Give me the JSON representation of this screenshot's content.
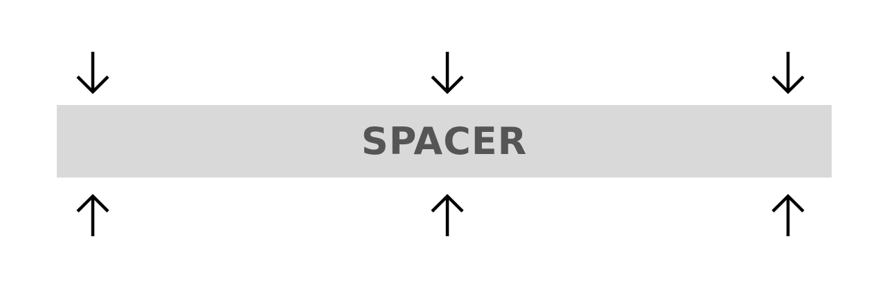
{
  "spacer": {
    "label": "SPACER",
    "bar_color": "#d9d9d9",
    "label_color": "#555555"
  },
  "arrows": {
    "top": [
      {
        "icon": "arrow-down-icon",
        "direction": "down"
      },
      {
        "icon": "arrow-down-icon",
        "direction": "down"
      },
      {
        "icon": "arrow-down-icon",
        "direction": "down"
      }
    ],
    "bottom": [
      {
        "icon": "arrow-up-icon",
        "direction": "up"
      },
      {
        "icon": "arrow-up-icon",
        "direction": "up"
      },
      {
        "icon": "arrow-up-icon",
        "direction": "up"
      }
    ],
    "color": "#000000"
  }
}
